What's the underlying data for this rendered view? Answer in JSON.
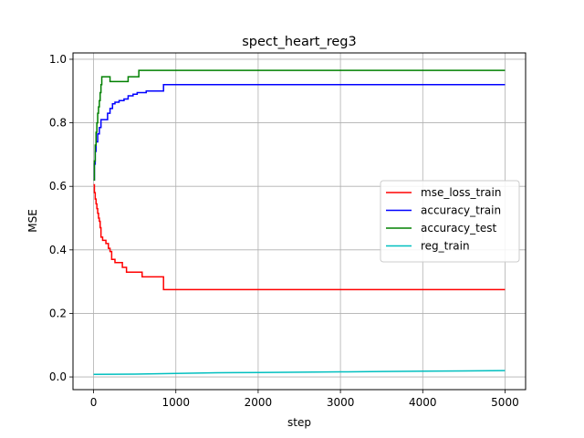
{
  "chart_data": {
    "type": "line",
    "title": "spect_heart_reg3",
    "xlabel": "step",
    "ylabel": "MSE",
    "xlim": [
      -250,
      5250
    ],
    "ylim": [
      -0.04,
      1.02
    ],
    "xticks": [
      0,
      1000,
      2000,
      3000,
      4000,
      5000
    ],
    "xtick_labels": [
      "0",
      "1000",
      "2000",
      "3000",
      "4000",
      "5000"
    ],
    "yticks": [
      0.0,
      0.2,
      0.4,
      0.6,
      0.8,
      1.0
    ],
    "ytick_labels": [
      "0.0",
      "0.2",
      "0.4",
      "0.6",
      "0.8",
      "1.0"
    ],
    "grid": true,
    "legend_position": "center-right",
    "series": [
      {
        "name": "mse_loss_train",
        "color": "#ff0000",
        "step": true,
        "x": [
          0,
          10,
          20,
          30,
          40,
          50,
          60,
          70,
          80,
          90,
          110,
          150,
          180,
          200,
          220,
          260,
          310,
          350,
          400,
          450,
          590,
          850,
          5000
        ],
        "y": [
          0.605,
          0.58,
          0.56,
          0.545,
          0.53,
          0.515,
          0.5,
          0.49,
          0.47,
          0.44,
          0.43,
          0.42,
          0.405,
          0.395,
          0.37,
          0.36,
          0.36,
          0.345,
          0.33,
          0.33,
          0.315,
          0.275,
          0.275
        ]
      },
      {
        "name": "accuracy_train",
        "color": "#0000ff",
        "step": true,
        "x": [
          0,
          10,
          20,
          30,
          50,
          70,
          90,
          130,
          170,
          200,
          230,
          260,
          310,
          370,
          420,
          480,
          530,
          640,
          850,
          5000
        ],
        "y": [
          0.62,
          0.67,
          0.71,
          0.74,
          0.765,
          0.785,
          0.81,
          0.81,
          0.83,
          0.845,
          0.86,
          0.865,
          0.87,
          0.875,
          0.885,
          0.89,
          0.895,
          0.9,
          0.92,
          0.92
        ]
      },
      {
        "name": "accuracy_test",
        "color": "#008000",
        "step": true,
        "x": [
          0,
          10,
          20,
          30,
          40,
          50,
          60,
          70,
          80,
          90,
          100,
          120,
          200,
          420,
          550,
          5000
        ],
        "y": [
          0.62,
          0.68,
          0.73,
          0.77,
          0.8,
          0.83,
          0.85,
          0.87,
          0.895,
          0.92,
          0.945,
          0.945,
          0.93,
          0.945,
          0.965,
          0.965
        ]
      },
      {
        "name": "reg_train",
        "color": "#00bfbf",
        "step": false,
        "x": [
          0,
          500,
          1000,
          1500,
          2000,
          2500,
          3000,
          3500,
          4000,
          4500,
          5000
        ],
        "y": [
          0.008,
          0.009,
          0.011,
          0.013,
          0.014,
          0.015,
          0.016,
          0.017,
          0.018,
          0.019,
          0.02
        ]
      }
    ]
  }
}
